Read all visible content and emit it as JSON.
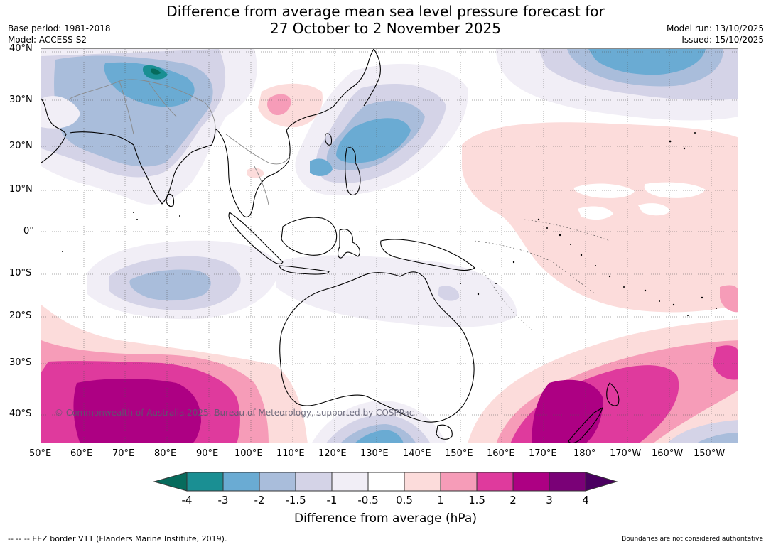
{
  "header": {
    "title_line1": "Difference from average mean sea level pressure forecast for",
    "title_line2": "27 October to 2 November 2025",
    "base_period": "Base period: 1981-2018",
    "model": "Model: ACCESS-S2",
    "model_run": "Model run: 13/10/2025",
    "issued": "Issued: 15/10/2025"
  },
  "map": {
    "lat_labels": [
      "40°N",
      "30°N",
      "20°N",
      "10°N",
      "0°",
      "10°S",
      "20°S",
      "30°S",
      "40°S"
    ],
    "lon_labels": [
      "50°E",
      "60°E",
      "70°E",
      "80°E",
      "90°E",
      "100°E",
      "110°E",
      "120°E",
      "130°E",
      "140°E",
      "150°E",
      "160°E",
      "170°E",
      "180°",
      "170°W",
      "160°W",
      "150°W"
    ],
    "copyright": "© Commonwealth of Australia 2025, Bureau of Meteorology, supported by COSPPac",
    "regions": [
      {
        "name": "central-asia-low",
        "label": "Below average pressure over South and Central Asia"
      },
      {
        "name": "philippines-low",
        "label": "Below average pressure east of the Philippines"
      },
      {
        "name": "north-pacific-low",
        "label": "Below average pressure in the North Pacific"
      },
      {
        "name": "indian-ocean-low",
        "label": "Below average pressure in the central Indian Ocean"
      },
      {
        "name": "south-pacific-high",
        "label": "Above average pressure across the Pacific"
      },
      {
        "name": "southern-indian-high",
        "label": "Above average pressure in the southern Indian Ocean"
      },
      {
        "name": "tasman-high",
        "label": "Above average pressure over New Zealand and the Tasman Sea"
      }
    ]
  },
  "colorbar": {
    "labels": [
      "-4",
      "-3",
      "-2",
      "-1.5",
      "-1",
      "-0.5",
      "0.5",
      "1",
      "1.5",
      "2",
      "3",
      "4"
    ],
    "colors": [
      "#1a8f93",
      "#6aabd3",
      "#a9bddb",
      "#d4d3e7",
      "#f1eef6",
      "#ffffff",
      "#fcdcdb",
      "#f69cb8",
      "#df3a9d",
      "#ad0083",
      "#7a0177"
    ],
    "extend_low_color": "#066b5c",
    "extend_high_color": "#4a0060",
    "title": "Difference from average (hPa)"
  },
  "footer": {
    "left": "--  --  -- EEZ border V11 (Flanders Marine Institute, 2019).",
    "right": "Boundaries are not considered authoritative"
  }
}
